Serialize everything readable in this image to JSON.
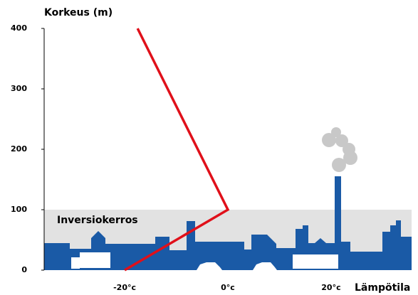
{
  "chart_data": {
    "type": "line",
    "y_label": "Korkeus (m)",
    "x_label": "Lämpötila",
    "x": [
      -20,
      0,
      -17.5
    ],
    "series": [
      {
        "color": "#e0101a",
        "values": [
          0,
          100,
          400
        ]
      }
    ],
    "band": {
      "label": "Inversiokerros",
      "range": [
        0,
        100
      ],
      "color": "#e2e2e2"
    },
    "xlim": [
      -35.6,
      35.6
    ],
    "ylim": [
      0,
      400
    ],
    "xticks": [
      {
        "value": -20,
        "label": "-20°c"
      },
      {
        "value": 0,
        "label": "0°c"
      },
      {
        "value": 20,
        "label": "20°c"
      }
    ],
    "yticks": [
      0,
      100,
      200,
      300,
      400
    ],
    "grid": false
  }
}
